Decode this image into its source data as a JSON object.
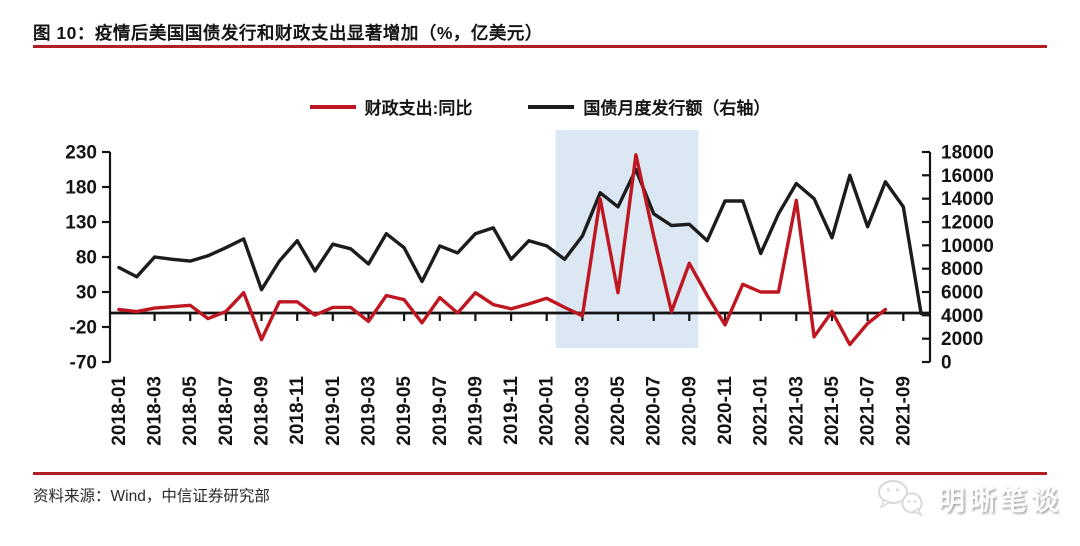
{
  "title": "图 10：疫情后美国国债发行和财政支出显著增加（%，亿美元）",
  "legend": [
    {
      "label": "财政支出:同比",
      "color": "#bf1722"
    },
    {
      "label": "国债月度发行额（右轴）",
      "color": "#1c1c1c"
    }
  ],
  "footer": {
    "source": "资料来源：Wind，中信证券研究部"
  },
  "watermark": {
    "label": "明晰笔谈",
    "icon": "wechat-icon"
  },
  "theme": {
    "rule_color": "#b01f24",
    "axis_color": "#141414",
    "band_color": "#dbe7f3"
  },
  "chart_data": {
    "type": "line",
    "title": "疫情后美国国债发行和财政支出显著增加",
    "units": "%，亿美元",
    "categories": [
      "2018-01",
      "2018-02",
      "2018-03",
      "2018-04",
      "2018-05",
      "2018-06",
      "2018-07",
      "2018-08",
      "2018-09",
      "2018-10",
      "2018-11",
      "2018-12",
      "2019-01",
      "2019-02",
      "2019-03",
      "2019-04",
      "2019-05",
      "2019-06",
      "2019-07",
      "2019-08",
      "2019-09",
      "2019-10",
      "2019-11",
      "2019-12",
      "2020-01",
      "2020-02",
      "2020-03",
      "2020-04",
      "2020-05",
      "2020-06",
      "2020-07",
      "2020-08",
      "2020-09",
      "2020-10",
      "2020-11",
      "2020-12",
      "2021-01",
      "2021-02",
      "2021-03",
      "2021-04",
      "2021-05",
      "2021-06",
      "2021-07",
      "2021-08",
      "2021-09",
      "2021-10"
    ],
    "x_label_every": 2,
    "series": [
      {
        "name": "财政支出:同比",
        "axis": "left",
        "color": "#bf1722",
        "values": [
          5,
          2,
          7,
          9,
          11,
          -8,
          2,
          29,
          -38,
          16,
          16,
          -3,
          8,
          8,
          -12,
          25,
          19,
          -14,
          22,
          0,
          29,
          12,
          6,
          13,
          21,
          8,
          -4,
          163,
          29,
          226,
          110,
          2,
          71,
          25,
          -17,
          41,
          30,
          30,
          161,
          -34,
          2,
          -45,
          -15,
          5,
          null,
          null
        ]
      },
      {
        "name": "国债月度发行额（右轴）",
        "axis": "right",
        "color": "#1c1c1c",
        "values": [
          8100,
          7300,
          9000,
          8800,
          8650,
          9100,
          9800,
          10550,
          6200,
          8650,
          10400,
          7800,
          10100,
          9700,
          8400,
          11000,
          9800,
          6900,
          9950,
          9350,
          11000,
          11500,
          8800,
          10400,
          9950,
          8800,
          10800,
          14500,
          13300,
          16500,
          12700,
          11700,
          11800,
          10400,
          13800,
          13800,
          9300,
          12700,
          15300,
          14000,
          10650,
          16000,
          11600,
          15450,
          13300,
          4150
        ]
      }
    ],
    "ylim_left": [
      -70,
      230
    ],
    "yticks_left": [
      230,
      180,
      130,
      80,
      30,
      -20,
      -70
    ],
    "ylim_right": [
      0,
      18000
    ],
    "yticks_right": [
      18000,
      16000,
      14000,
      12000,
      10000,
      8000,
      6000,
      4000,
      2000,
      0
    ],
    "highlight_band": {
      "from": "2020-02",
      "to": "2020-10",
      "color": "#dbe7f3"
    },
    "zero_line_at_left_value": 0,
    "grid": false,
    "legend_position": "top"
  }
}
